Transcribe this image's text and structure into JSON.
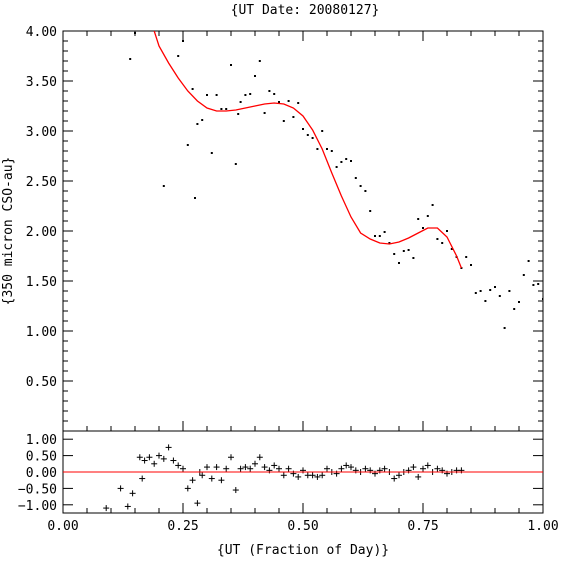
{
  "chart_data": [
    {
      "type": "scatter",
      "title": "{UT Date: 20080127}",
      "ylabel": "{350 micron CSO-au}",
      "xlim": [
        0.0,
        1.0
      ],
      "ylim": [
        0.0,
        4.0
      ],
      "yticks": [
        "4.00",
        "3.50",
        "3.00",
        "2.50",
        "2.00",
        "1.50",
        "1.00",
        "0.50"
      ],
      "yticks_values": [
        4.0,
        3.5,
        3.0,
        2.5,
        2.0,
        1.5,
        1.0,
        0.5
      ],
      "grid": false,
      "series": [
        {
          "kind": "points",
          "marker": "dot",
          "color": "#000000",
          "x": [
            0.14,
            0.15,
            0.18,
            0.21,
            0.24,
            0.25,
            0.26,
            0.27,
            0.275,
            0.28,
            0.29,
            0.3,
            0.31,
            0.32,
            0.33,
            0.34,
            0.35,
            0.36,
            0.365,
            0.37,
            0.38,
            0.39,
            0.4,
            0.41,
            0.42,
            0.43,
            0.44,
            0.45,
            0.46,
            0.47,
            0.48,
            0.49,
            0.5,
            0.51,
            0.52,
            0.53,
            0.54,
            0.55,
            0.56,
            0.57,
            0.58,
            0.59,
            0.6,
            0.61,
            0.62,
            0.63,
            0.64,
            0.65,
            0.66,
            0.67,
            0.68,
            0.69,
            0.7,
            0.71,
            0.72,
            0.73,
            0.74,
            0.75,
            0.76,
            0.77,
            0.78,
            0.79,
            0.8,
            0.81,
            0.82,
            0.83,
            0.84,
            0.85,
            0.86,
            0.87,
            0.88,
            0.89,
            0.9,
            0.91,
            0.92,
            0.93,
            0.94,
            0.95,
            0.96,
            0.97,
            0.98,
            0.99,
            1.0
          ],
          "y": [
            3.72,
            3.98,
            4.15,
            2.45,
            3.75,
            3.9,
            2.86,
            3.42,
            2.33,
            3.07,
            3.11,
            3.36,
            2.78,
            3.36,
            3.22,
            3.22,
            3.66,
            2.67,
            3.17,
            3.29,
            3.36,
            3.37,
            3.55,
            3.7,
            3.18,
            3.4,
            3.37,
            3.29,
            3.1,
            3.3,
            3.14,
            3.28,
            3.02,
            2.96,
            2.93,
            2.82,
            3.0,
            2.82,
            2.8,
            2.64,
            2.69,
            2.72,
            2.7,
            2.53,
            2.45,
            2.4,
            2.2,
            1.95,
            1.95,
            1.99,
            1.88,
            1.77,
            1.68,
            1.8,
            1.81,
            1.73,
            2.12,
            2.03,
            2.15,
            2.26,
            1.92,
            1.88,
            2.0,
            1.82,
            1.74,
            1.63,
            1.74,
            1.66,
            1.38,
            1.4,
            1.3,
            1.41,
            1.44,
            1.35,
            1.03,
            1.4,
            1.22,
            1.29,
            1.56,
            1.7,
            1.46,
            1.47,
            1.32
          ]
        },
        {
          "kind": "fit",
          "color": "#ff0000",
          "x": [
            0.19,
            0.2,
            0.22,
            0.24,
            0.26,
            0.28,
            0.3,
            0.32,
            0.34,
            0.36,
            0.38,
            0.4,
            0.42,
            0.44,
            0.46,
            0.48,
            0.5,
            0.52,
            0.54,
            0.56,
            0.58,
            0.6,
            0.62,
            0.64,
            0.66,
            0.68,
            0.7,
            0.72,
            0.74,
            0.76,
            0.78,
            0.8,
            0.82,
            0.83
          ],
          "y": [
            4.0,
            3.85,
            3.68,
            3.53,
            3.4,
            3.3,
            3.23,
            3.2,
            3.2,
            3.21,
            3.23,
            3.25,
            3.27,
            3.28,
            3.27,
            3.23,
            3.15,
            3.01,
            2.82,
            2.58,
            2.35,
            2.14,
            1.98,
            1.92,
            1.88,
            1.87,
            1.89,
            1.93,
            1.98,
            2.03,
            2.03,
            1.94,
            1.75,
            1.63
          ]
        }
      ]
    },
    {
      "type": "scatter",
      "xlabel": "{UT (Fraction of Day)}",
      "xlim": [
        0.0,
        1.0
      ],
      "ylim": [
        -1.25,
        1.25
      ],
      "xticks": [
        "0.00",
        "0.25",
        "0.50",
        "0.75",
        "1.00"
      ],
      "xticks_values": [
        0.0,
        0.25,
        0.5,
        0.75,
        1.0
      ],
      "yticks": [
        "1.00",
        "0.50",
        "0.00",
        "−0.50",
        "−1.00"
      ],
      "yticks_values": [
        1.0,
        0.5,
        0.0,
        -0.5,
        -1.0
      ],
      "grid": false,
      "series": [
        {
          "kind": "points",
          "marker": "plus",
          "color": "#000000",
          "x": [
            0.09,
            0.12,
            0.135,
            0.145,
            0.16,
            0.165,
            0.17,
            0.18,
            0.19,
            0.2,
            0.21,
            0.22,
            0.23,
            0.24,
            0.25,
            0.26,
            0.27,
            0.28,
            0.285,
            0.29,
            0.3,
            0.31,
            0.32,
            0.33,
            0.34,
            0.35,
            0.36,
            0.37,
            0.38,
            0.39,
            0.4,
            0.41,
            0.42,
            0.43,
            0.44,
            0.45,
            0.46,
            0.47,
            0.48,
            0.49,
            0.5,
            0.51,
            0.52,
            0.53,
            0.54,
            0.55,
            0.56,
            0.57,
            0.58,
            0.59,
            0.6,
            0.61,
            0.62,
            0.63,
            0.64,
            0.65,
            0.66,
            0.67,
            0.68,
            0.69,
            0.7,
            0.71,
            0.72,
            0.73,
            0.74,
            0.75,
            0.76,
            0.77,
            0.78,
            0.79,
            0.8,
            0.81,
            0.82,
            0.83
          ],
          "y": [
            -1.1,
            -0.5,
            -1.05,
            -0.65,
            0.45,
            -0.2,
            0.35,
            0.45,
            0.25,
            0.5,
            0.4,
            0.75,
            0.35,
            0.2,
            0.1,
            -0.5,
            -0.25,
            -0.95,
            0.0,
            -0.1,
            0.15,
            -0.2,
            0.15,
            -0.25,
            0.1,
            0.45,
            -0.55,
            0.1,
            0.15,
            0.1,
            0.25,
            0.45,
            0.15,
            0.05,
            0.2,
            0.1,
            -0.1,
            0.1,
            -0.05,
            -0.15,
            0.05,
            -0.1,
            -0.1,
            -0.15,
            -0.1,
            0.1,
            0.0,
            -0.05,
            0.1,
            0.2,
            0.15,
            0.05,
            0.0,
            0.1,
            0.05,
            -0.05,
            0.05,
            0.1,
            0.0,
            -0.2,
            -0.1,
            0.0,
            0.05,
            0.15,
            -0.15,
            0.1,
            0.2,
            0.0,
            0.1,
            0.05,
            -0.05,
            0.0,
            0.05,
            0.05
          ]
        },
        {
          "kind": "line",
          "color": "#ff0000",
          "x": [
            0.0,
            1.0
          ],
          "y": [
            0.0,
            0.0
          ]
        }
      ]
    }
  ]
}
